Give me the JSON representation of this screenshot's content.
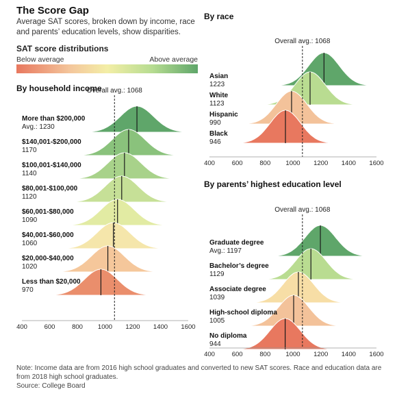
{
  "title": "The Score Gap",
  "subtitle": "Average SAT scores, broken down by income, race and parents’ education levels, show disparities.",
  "legend": {
    "title": "SAT score distributions",
    "left_label": "Below average",
    "right_label": "Above average",
    "colors": [
      "#e8785f",
      "#f4c79c",
      "#f3eea6",
      "#b6dc91",
      "#5fa66a"
    ]
  },
  "footnote": {
    "note": "Note: Income data are from 2016 high school graduates and converted to new SAT scores. Race and education data are from 2018 high school graduates.",
    "source": "Source: College Board"
  },
  "chart_data": [
    {
      "type": "ridgeline",
      "title": "By household income",
      "overall_label": "Overall avg.: 1068",
      "overall_avg": 1068,
      "xlim": [
        400,
        1600
      ],
      "xticks": [
        400,
        600,
        800,
        1000,
        1200,
        1400,
        1600
      ],
      "series": [
        {
          "name": "More than $200,000",
          "avg_label": "Avg.: 1230",
          "mean": 1230,
          "color": "#5fa66a"
        },
        {
          "name": "$140,001-$200,000",
          "avg_label": "1170",
          "mean": 1170,
          "color": "#8ac27c"
        },
        {
          "name": "$100,001-$140,000",
          "avg_label": "1140",
          "mean": 1140,
          "color": "#a8d28a"
        },
        {
          "name": "$80,001-$100,000",
          "avg_label": "1120",
          "mean": 1120,
          "color": "#c6e097"
        },
        {
          "name": "$60,001-$80,000",
          "avg_label": "1090",
          "mean": 1090,
          "color": "#e2eba3"
        },
        {
          "name": "$40,001-$60,000",
          "avg_label": "1060",
          "mean": 1060,
          "color": "#f5e6ab"
        },
        {
          "name": "$20,000-$40,000",
          "avg_label": "1020",
          "mean": 1020,
          "color": "#f5c79b"
        },
        {
          "name": "Less than $20,000",
          "avg_label": "970",
          "mean": 970,
          "color": "#ea8e6c"
        }
      ]
    },
    {
      "type": "ridgeline",
      "title": "By race",
      "overall_label": "Overall avg.: 1068",
      "overall_avg": 1068,
      "xlim": [
        400,
        1600
      ],
      "xticks": [
        400,
        600,
        800,
        1000,
        1200,
        1400,
        1600
      ],
      "series": [
        {
          "name": "Asian",
          "avg_label": "1223",
          "mean": 1223,
          "color": "#5fa66a"
        },
        {
          "name": "White",
          "avg_label": "1123",
          "mean": 1123,
          "color": "#b9dc91"
        },
        {
          "name": "Hispanic",
          "avg_label": "990",
          "mean": 990,
          "color": "#f3c29a"
        },
        {
          "name": "Black",
          "avg_label": "946",
          "mean": 946,
          "color": "#e8785f"
        }
      ]
    },
    {
      "type": "ridgeline",
      "title": "By parents’ highest education level",
      "overall_label": "Overall avg.: 1068",
      "overall_avg": 1068,
      "xlim": [
        400,
        1600
      ],
      "xticks": [
        400,
        600,
        800,
        1000,
        1200,
        1400,
        1600
      ],
      "series": [
        {
          "name": "Graduate degree",
          "avg_label": "Avg.: 1197",
          "mean": 1197,
          "color": "#5fa66a"
        },
        {
          "name": "Bachelor’s degree",
          "avg_label": "1129",
          "mean": 1129,
          "color": "#b9dc91"
        },
        {
          "name": "Associate degree",
          "avg_label": "1039",
          "mean": 1039,
          "color": "#f7dea6"
        },
        {
          "name": "High-school diploma",
          "avg_label": "1005",
          "mean": 1005,
          "color": "#f3c29a"
        },
        {
          "name": "No diploma",
          "avg_label": "944",
          "mean": 944,
          "color": "#e8785f"
        }
      ]
    }
  ]
}
